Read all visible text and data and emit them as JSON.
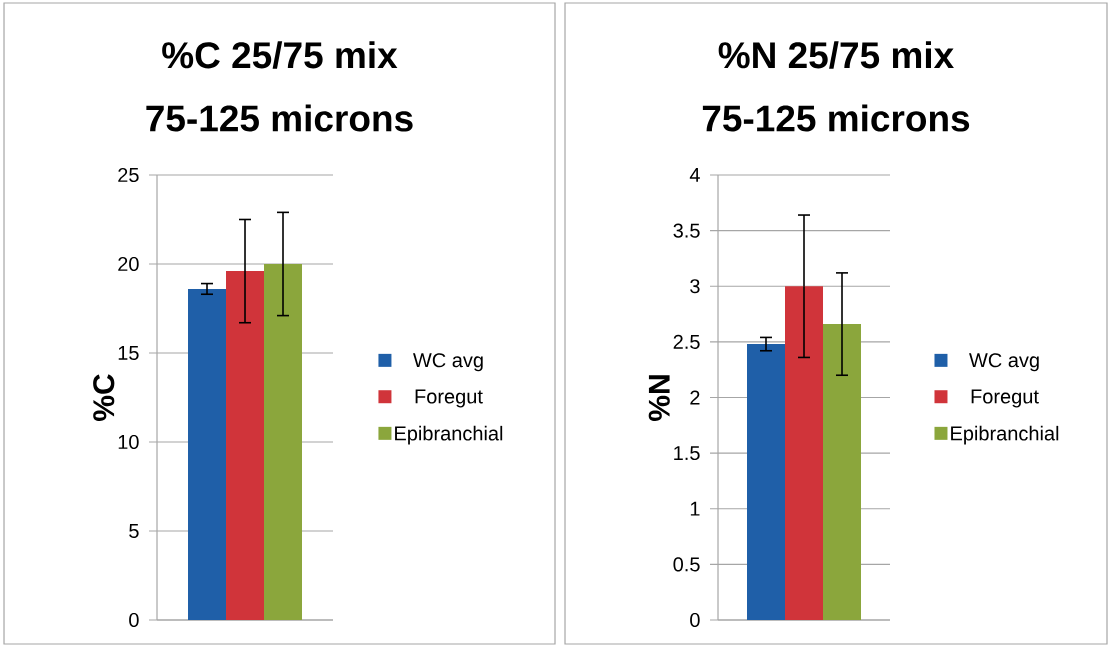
{
  "chart_data": [
    {
      "type": "bar",
      "title": "%C 25/75 mix",
      "subtitle": "75-125 microns",
      "ylabel": "%C",
      "categories": [
        null
      ],
      "ylim": [
        0,
        25
      ],
      "yticks": [
        0,
        5,
        10,
        15,
        20,
        25
      ],
      "grid": "y",
      "legend": "right",
      "tick_labels": "y",
      "series": [
        {
          "name": "WC avg",
          "color": "#1f5fa8",
          "values": [
            18.6
          ],
          "errors": [
            0.3
          ]
        },
        {
          "name": "Foregut",
          "color": "#d0343a",
          "values": [
            19.6
          ],
          "errors": [
            2.9
          ]
        },
        {
          "name": "Epibranchial",
          "color": "#8ba63c",
          "values": [
            20.0
          ],
          "errors": [
            2.9
          ]
        }
      ]
    },
    {
      "type": "bar",
      "title": "%N 25/75 mix",
      "subtitle": "75-125 microns",
      "ylabel": "%N",
      "categories": [
        null
      ],
      "ylim": [
        0,
        4
      ],
      "yticks": [
        0,
        0.5,
        1,
        1.5,
        2,
        2.5,
        3,
        3.5,
        4
      ],
      "grid": "y",
      "legend": "right",
      "tick_labels": "y",
      "series": [
        {
          "name": "WC avg",
          "color": "#1f5fa8",
          "values": [
            2.48
          ],
          "errors": [
            0.06
          ]
        },
        {
          "name": "Foregut",
          "color": "#d0343a",
          "values": [
            3.0
          ],
          "errors": [
            0.64
          ]
        },
        {
          "name": "Epibranchial",
          "color": "#8ba63c",
          "values": [
            2.66
          ],
          "errors": [
            0.46
          ]
        }
      ]
    }
  ]
}
